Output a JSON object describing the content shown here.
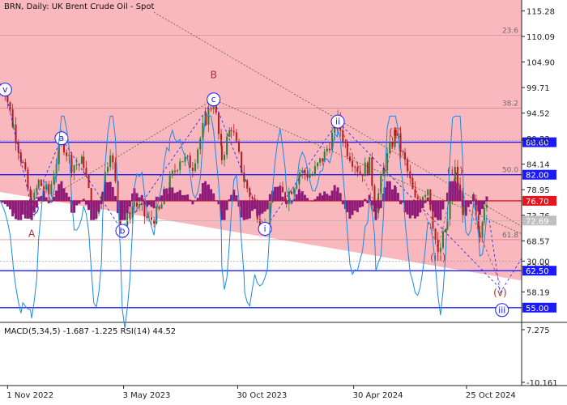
{
  "chart": {
    "symbol": "BRN",
    "timeframe": "Daily:",
    "instrument": "UK Brent Crude Oil - Spot"
  },
  "price_axis": {
    "ticks": [
      "115.28",
      "110.09",
      "104.90",
      "99.71",
      "94.52",
      "89.33",
      "84.14",
      "78.95",
      "73.76",
      "68.57",
      "63.38",
      "58.19"
    ],
    "tick_values": [
      115.28,
      110.09,
      104.9,
      99.71,
      94.52,
      89.33,
      84.14,
      78.95,
      73.76,
      68.57,
      63.38,
      58.19
    ]
  },
  "levels": [
    {
      "label": "88.60",
      "value": 88.6,
      "color": "#1a1aff"
    },
    {
      "label": "82.00",
      "value": 82.0,
      "color": "#1a1aff"
    },
    {
      "label": "76.70",
      "value": 76.7,
      "color": "#e8141e"
    },
    {
      "label": "62.50",
      "value": 62.5,
      "color": "#1a1aff"
    },
    {
      "label": "55.00",
      "value": 55.0,
      "color": "#1a1aff"
    }
  ],
  "current_price": {
    "label": "72.69",
    "value": 72.69
  },
  "fibonacci": [
    {
      "label": "23.6",
      "value": 110.3
    },
    {
      "label": "38.2",
      "value": 95.5
    },
    {
      "label": "50.0",
      "value": 82.0
    },
    {
      "label": "61.8",
      "value": 68.8
    }
  ],
  "waves": [
    {
      "text": "v",
      "circled": true,
      "color": "#1a1aff",
      "date": "2022-10-28",
      "price": 99.3
    },
    {
      "text": "v",
      "circled": true,
      "color": "#1a1aff",
      "date": "2022-12-09",
      "price": 75.2
    },
    {
      "text": "a",
      "circled": true,
      "color": "#1a1aff",
      "date": "2023-01-25",
      "price": 89.4
    },
    {
      "text": "b",
      "circled": true,
      "color": "#1a1aff",
      "date": "2023-05-01",
      "price": 70.6
    },
    {
      "text": "c",
      "circled": true,
      "color": "#1a1aff",
      "date": "2023-09-22",
      "price": 97.3
    },
    {
      "text": "i",
      "circled": true,
      "color": "#1a1aff",
      "date": "2023-12-12",
      "price": 71.0
    },
    {
      "text": "ii",
      "circled": true,
      "color": "#1a1aff",
      "date": "2024-04-05",
      "price": 92.8
    },
    {
      "text": "iii",
      "circled": true,
      "color": "#1a1aff",
      "date": "2024-12-20",
      "price": 54.5
    },
    {
      "text": "A",
      "circled": false,
      "color": "#b03030",
      "date": "2022-12-09",
      "price": 70.0
    },
    {
      "text": "B",
      "circled": false,
      "color": "#b03030",
      "date": "2023-09-22",
      "price": 102.3
    },
    {
      "text": "i",
      "circled": false,
      "color": "#b03030",
      "date": "2024-06-04",
      "price": 75.5
    },
    {
      "text": "ii",
      "circled": false,
      "color": "#b03030",
      "date": "2024-07-05",
      "price": 90.6
    },
    {
      "text": "iii",
      "circled": false,
      "color": "#b03030",
      "date": "2024-09-10",
      "price": 65.2
    },
    {
      "text": "iv",
      "circled": false,
      "color": "#b03030",
      "date": "2024-10-07",
      "price": 82.8
    },
    {
      "text": "v",
      "circled": false,
      "color": "#b03030",
      "date": "2024-12-17",
      "price": 58.0
    }
  ],
  "date_axis": {
    "labels": [
      "1 Nov 2022",
      "3 May 2023",
      "30 Oct 2023",
      "30 Apr 2024",
      "25 Oct 2024"
    ],
    "dates": [
      "2022-11-01",
      "2023-05-03",
      "2023-10-30",
      "2024-04-30",
      "2024-10-25"
    ]
  },
  "indicator": {
    "title": "MACD(5,34,5) -1.687 -1.225 RSI(14) 44.52",
    "ticks": [
      "7.275",
      "70.00",
      "30.00",
      "-10.161"
    ],
    "tick_values": [
      7.275,
      70.0,
      30.0,
      -10.161
    ]
  },
  "colors": {
    "background": "#ffffff",
    "channel_fill": "#f8b8be",
    "support_level": "#1a1aff",
    "resistance_level": "#e8141e",
    "candle_up": "#2e7d32",
    "candle_down": "#b71c1c",
    "histogram": "#8e1a78",
    "rsi_line": "#1e88e5",
    "wave_primary": "#1a1aff",
    "wave_secondary": "#b03030",
    "trend_line": "#556b2f",
    "current_price_box": "#c0c0c0"
  },
  "chart_data": {
    "type": "candlestick",
    "x_range": [
      "2022-10-20",
      "2025-01-20"
    ],
    "y_range": [
      52.0,
      117.5
    ],
    "path": [
      [
        "2022-10-20",
        99.8
      ],
      [
        "2022-10-28",
        99.3
      ],
      [
        "2022-11-10",
        92.0
      ],
      [
        "2022-11-25",
        84.0
      ],
      [
        "2022-12-09",
        75.2
      ],
      [
        "2022-12-20",
        80.5
      ],
      [
        "2023-01-05",
        78.0
      ],
      [
        "2023-01-25",
        89.4
      ],
      [
        "2023-02-10",
        84.0
      ],
      [
        "2023-03-01",
        84.5
      ],
      [
        "2023-03-17",
        72.0
      ],
      [
        "2023-03-31",
        79.5
      ],
      [
        "2023-04-12",
        87.5
      ],
      [
        "2023-04-20",
        80.0
      ],
      [
        "2023-05-01",
        70.6
      ],
      [
        "2023-05-20",
        76.5
      ],
      [
        "2023-06-12",
        72.5
      ],
      [
        "2023-06-28",
        74.5
      ],
      [
        "2023-07-15",
        80.5
      ],
      [
        "2023-07-31",
        85.5
      ],
      [
        "2023-08-20",
        84.0
      ],
      [
        "2023-09-10",
        93.5
      ],
      [
        "2023-09-22",
        97.3
      ],
      [
        "2023-10-05",
        85.5
      ],
      [
        "2023-10-20",
        92.0
      ],
      [
        "2023-11-10",
        80.5
      ],
      [
        "2023-12-12",
        71.0
      ],
      [
        "2023-12-28",
        78.5
      ],
      [
        "2024-01-15",
        77.5
      ],
      [
        "2024-02-05",
        82.5
      ],
      [
        "2024-02-25",
        82.0
      ],
      [
        "2024-03-15",
        86.0
      ],
      [
        "2024-04-05",
        92.8
      ],
      [
        "2024-04-20",
        87.0
      ],
      [
        "2024-05-10",
        82.5
      ],
      [
        "2024-05-25",
        84.0
      ],
      [
        "2024-06-04",
        75.5
      ],
      [
        "2024-06-18",
        84.0
      ],
      [
        "2024-07-05",
        90.6
      ],
      [
        "2024-07-20",
        84.5
      ],
      [
        "2024-08-05",
        76.5
      ],
      [
        "2024-08-25",
        79.5
      ],
      [
        "2024-09-10",
        65.2
      ],
      [
        "2024-09-25",
        72.5
      ],
      [
        "2024-10-07",
        82.8
      ],
      [
        "2024-10-20",
        74.5
      ],
      [
        "2024-11-05",
        76.0
      ],
      [
        "2024-11-15",
        70.5
      ],
      [
        "2024-11-22",
        76.5
      ],
      [
        "2024-11-30",
        72.7
      ]
    ],
    "projection": [
      [
        "2024-11-30",
        72.7
      ],
      [
        "2024-12-17",
        58.0
      ],
      [
        "2025-01-20",
        65.0
      ]
    ],
    "channel": [
      [
        "2022-10-20",
        117.5,
        78.5
      ],
      [
        "2025-01-20",
        117.5,
        60.5
      ]
    ],
    "trend_lines": [
      {
        "style": "dotted",
        "points": [
          [
            "2022-12-09",
            75.2
          ],
          [
            "2023-09-22",
            97.3
          ]
        ]
      },
      {
        "style": "dotted",
        "points": [
          [
            "2023-09-22",
            97.3
          ],
          [
            "2025-01-20",
            70.0
          ]
        ]
      },
      {
        "style": "dotted",
        "points": [
          [
            "2023-06-20",
            115.0
          ],
          [
            "2025-01-20",
            71.5
          ]
        ]
      }
    ]
  }
}
